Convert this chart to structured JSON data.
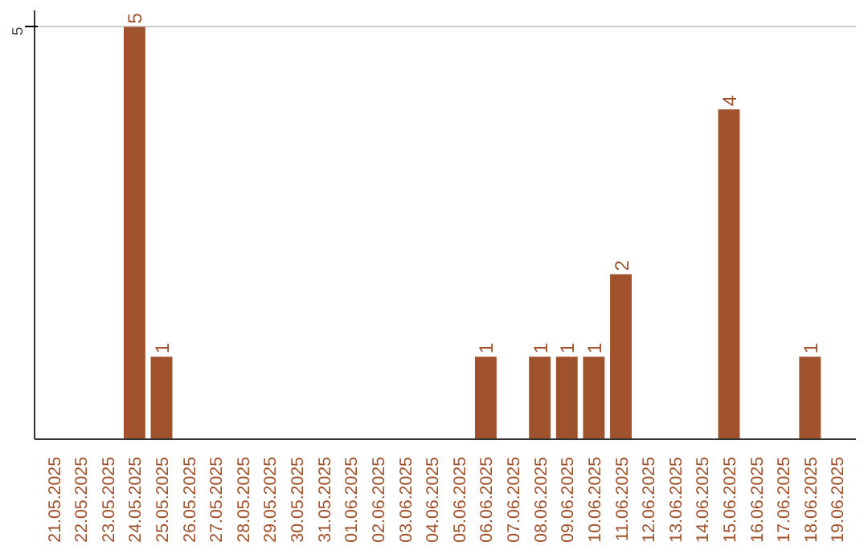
{
  "chart_data": {
    "type": "bar",
    "categories": [
      "21.05.2025",
      "22.05.2025",
      "23.05.2025",
      "24.05.2025",
      "25.05.2025",
      "26.05.2025",
      "27.05.2025",
      "28.05.2025",
      "29.05.2025",
      "30.05.2025",
      "31.05.2025",
      "01.06.2025",
      "02.06.2025",
      "03.06.2025",
      "04.06.2025",
      "05.06.2025",
      "06.06.2025",
      "07.06.2025",
      "08.06.2025",
      "09.06.2025",
      "10.06.2025",
      "11.06.2025",
      "12.06.2025",
      "13.06.2025",
      "14.06.2025",
      "15.06.2025",
      "16.06.2025",
      "17.06.2025",
      "18.06.2025",
      "19.06.2025"
    ],
    "values": [
      0,
      0,
      0,
      5,
      1,
      0,
      0,
      0,
      0,
      0,
      0,
      0,
      0,
      0,
      0,
      0,
      1,
      0,
      1,
      1,
      1,
      2,
      0,
      0,
      0,
      4,
      0,
      0,
      1,
      0
    ],
    "value_labels": [
      null,
      null,
      null,
      "5",
      "1",
      null,
      null,
      null,
      null,
      null,
      null,
      null,
      null,
      null,
      null,
      null,
      "1",
      null,
      "1",
      "1",
      "1",
      "2",
      null,
      null,
      null,
      "4",
      null,
      null,
      "1",
      null
    ],
    "color": "#a0522d",
    "ylim": [
      0,
      5.2
    ],
    "yticks": [
      5
    ],
    "grid": "y"
  }
}
